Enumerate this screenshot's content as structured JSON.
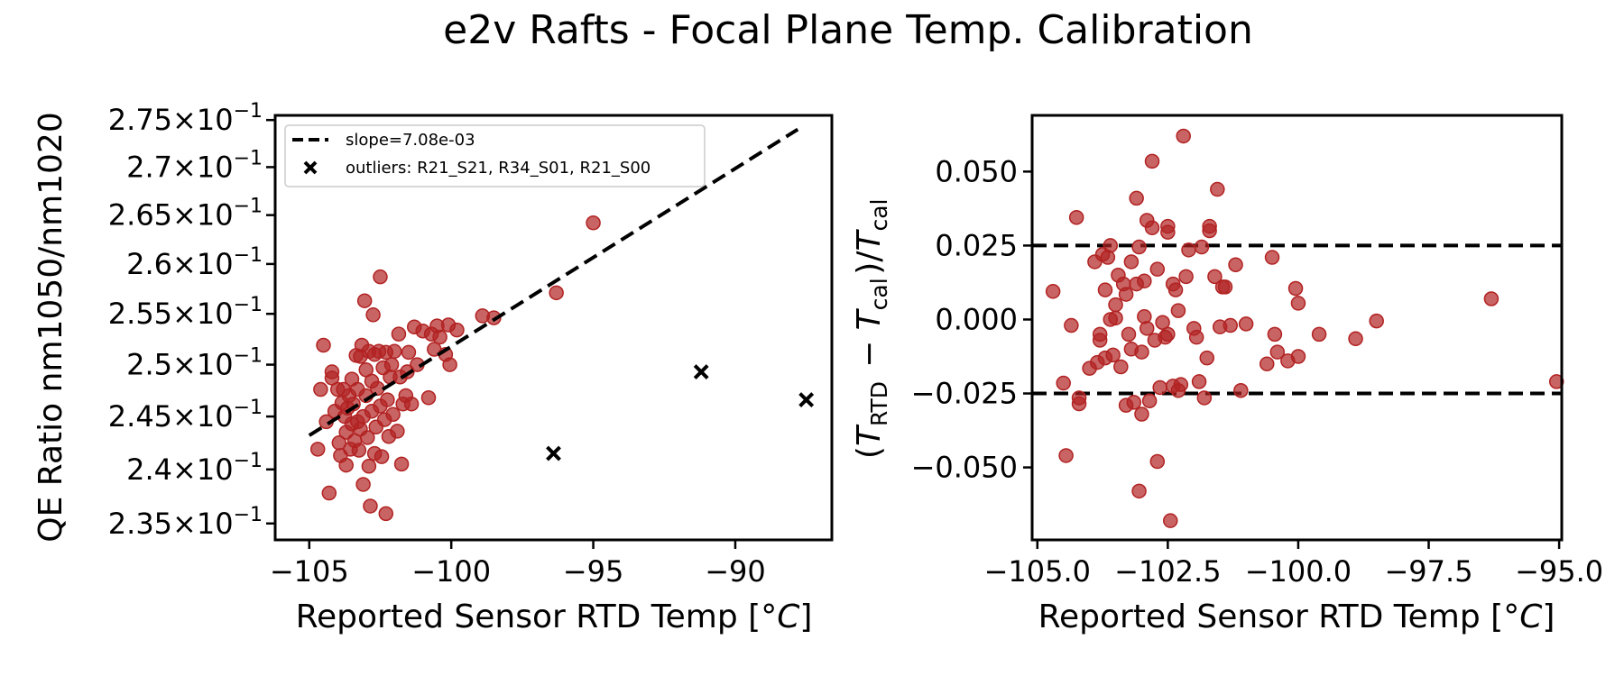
{
  "title": "e2v Rafts - Focal Plane Temp. Calibration",
  "colors": {
    "point": "#b22222",
    "line": "#000000"
  },
  "chart_data": [
    {
      "type": "scatter",
      "xlabel": "Reported Sensor RTD Temp [°C]",
      "ylabel": "QE Ratio nm1050/nm1020",
      "xlim": [
        -106.2,
        -86.6
      ],
      "ylim": [
        0.2335,
        0.2755
      ],
      "yscale": "log",
      "legend_position": "upper-left",
      "xticks": [
        {
          "value": -105,
          "label": "−105"
        },
        {
          "value": -100,
          "label": "−100"
        },
        {
          "value": -95,
          "label": "−95"
        },
        {
          "value": -90,
          "label": "−90"
        }
      ],
      "yticks": [
        {
          "value": 0.235,
          "base": "2.35",
          "mult": "×",
          "pow": "10",
          "exp": "−1"
        },
        {
          "value": 0.24,
          "base": "2.4",
          "mult": "×",
          "pow": "10",
          "exp": "−1"
        },
        {
          "value": 0.245,
          "base": "2.45",
          "mult": "×",
          "pow": "10",
          "exp": "−1"
        },
        {
          "value": 0.25,
          "base": "2.5",
          "mult": "×",
          "pow": "10",
          "exp": "−1"
        },
        {
          "value": 0.255,
          "base": "2.55",
          "mult": "×",
          "pow": "10",
          "exp": "−1"
        },
        {
          "value": 0.26,
          "base": "2.6",
          "mult": "×",
          "pow": "10",
          "exp": "−1"
        },
        {
          "value": 0.265,
          "base": "2.65",
          "mult": "×",
          "pow": "10",
          "exp": "−1"
        },
        {
          "value": 0.27,
          "base": "2.7",
          "mult": "×",
          "pow": "10",
          "exp": "−1"
        },
        {
          "value": 0.275,
          "base": "2.75",
          "mult": "×",
          "pow": "10",
          "exp": "−1"
        }
      ],
      "fit_line": {
        "label": "slope=7.08e-03",
        "x": [
          -105.0,
          -87.8
        ],
        "y": [
          0.2432,
          0.274
        ]
      },
      "outliers": {
        "label": "outliers: R21_S21, R34_S01, R21_S00",
        "points": [
          [
            -96.4,
            0.2415
          ],
          [
            -91.2,
            0.2493
          ],
          [
            -87.5,
            0.2466
          ]
        ]
      },
      "points": [
        [
          -104.7,
          0.2419
        ],
        [
          -104.6,
          0.2476
        ],
        [
          -104.5,
          0.2519
        ],
        [
          -104.4,
          0.2445
        ],
        [
          -104.3,
          0.2378
        ],
        [
          -104.2,
          0.2487
        ],
        [
          -104.2,
          0.2493
        ],
        [
          -104.1,
          0.2455
        ],
        [
          -104.0,
          0.2476
        ],
        [
          -103.95,
          0.2425
        ],
        [
          -103.9,
          0.2413
        ],
        [
          -103.85,
          0.2463
        ],
        [
          -103.8,
          0.2476
        ],
        [
          -103.75,
          0.245
        ],
        [
          -103.7,
          0.2404
        ],
        [
          -103.7,
          0.2435
        ],
        [
          -103.65,
          0.2458
        ],
        [
          -103.6,
          0.247
        ],
        [
          -103.55,
          0.2419
        ],
        [
          -103.5,
          0.2443
        ],
        [
          -103.5,
          0.2486
        ],
        [
          -103.45,
          0.2462
        ],
        [
          -103.4,
          0.2427
        ],
        [
          -103.35,
          0.2509
        ],
        [
          -103.3,
          0.2445
        ],
        [
          -103.3,
          0.2476
        ],
        [
          -103.25,
          0.2418
        ],
        [
          -103.2,
          0.2438
        ],
        [
          -103.2,
          0.2508
        ],
        [
          -103.15,
          0.2519
        ],
        [
          -103.1,
          0.2386
        ],
        [
          -103.1,
          0.245
        ],
        [
          -103.05,
          0.2563
        ],
        [
          -103.0,
          0.247
        ],
        [
          -103.0,
          0.2495
        ],
        [
          -102.95,
          0.243
        ],
        [
          -102.9,
          0.2403
        ],
        [
          -102.9,
          0.2513
        ],
        [
          -102.85,
          0.2366
        ],
        [
          -102.8,
          0.2455
        ],
        [
          -102.8,
          0.2484
        ],
        [
          -102.75,
          0.2549
        ],
        [
          -102.7,
          0.2415
        ],
        [
          -102.7,
          0.251
        ],
        [
          -102.65,
          0.244
        ],
        [
          -102.6,
          0.2477
        ],
        [
          -102.55,
          0.2513
        ],
        [
          -102.5,
          0.2587
        ],
        [
          -102.5,
          0.246
        ],
        [
          -102.45,
          0.2412
        ],
        [
          -102.4,
          0.2497
        ],
        [
          -102.35,
          0.2447
        ],
        [
          -102.3,
          0.2359
        ],
        [
          -102.3,
          0.2512
        ],
        [
          -102.25,
          0.2466
        ],
        [
          -102.2,
          0.2431
        ],
        [
          -102.15,
          0.2488
        ],
        [
          -102.1,
          0.25
        ],
        [
          -102.05,
          0.2452
        ],
        [
          -102.0,
          0.2513
        ],
        [
          -101.9,
          0.2436
        ],
        [
          -101.85,
          0.253
        ],
        [
          -101.8,
          0.2488
        ],
        [
          -101.75,
          0.2405
        ],
        [
          -101.7,
          0.2462
        ],
        [
          -101.6,
          0.247
        ],
        [
          -101.55,
          0.2493
        ],
        [
          -101.5,
          0.2512
        ],
        [
          -101.4,
          0.2462
        ],
        [
          -101.3,
          0.2537
        ],
        [
          -101.2,
          0.25
        ],
        [
          -101.0,
          0.2533
        ],
        [
          -100.8,
          0.2468
        ],
        [
          -100.7,
          0.253
        ],
        [
          -100.6,
          0.2515
        ],
        [
          -100.5,
          0.2538
        ],
        [
          -100.4,
          0.2527
        ],
        [
          -100.2,
          0.251
        ],
        [
          -100.1,
          0.2539
        ],
        [
          -100.05,
          0.25
        ],
        [
          -99.8,
          0.2534
        ],
        [
          -98.9,
          0.2548
        ],
        [
          -98.5,
          0.2546
        ],
        [
          -96.3,
          0.2571
        ],
        [
          -95.0,
          0.2642
        ]
      ]
    },
    {
      "type": "scatter",
      "xlabel": "Reported Sensor RTD Temp [°C]",
      "ylabel": "(T_RTD − T_cal)/T_cal",
      "xlim": [
        -105.1,
        -94.95
      ],
      "ylim": [
        -0.0745,
        0.069
      ],
      "xticks": [
        {
          "value": -105.0,
          "label": "−105.0"
        },
        {
          "value": -102.5,
          "label": "−102.5"
        },
        {
          "value": -100.0,
          "label": "−100.0"
        },
        {
          "value": -97.5,
          "label": "−97.5"
        },
        {
          "value": -95.0,
          "label": "−95.0"
        }
      ],
      "yticks": [
        {
          "value": 0.05,
          "label": "0.050"
        },
        {
          "value": 0.025,
          "label": "0.025"
        },
        {
          "value": 0.0,
          "label": "0.000"
        },
        {
          "value": -0.025,
          "label": "−0.025"
        },
        {
          "value": -0.05,
          "label": "−0.050"
        }
      ],
      "hlines": [
        0.025,
        -0.025
      ],
      "points": [
        [
          -104.7,
          0.0095
        ],
        [
          -104.5,
          -0.0215
        ],
        [
          -104.45,
          -0.046
        ],
        [
          -104.35,
          -0.002
        ],
        [
          -104.25,
          0.0345
        ],
        [
          -104.2,
          -0.0265
        ],
        [
          -104.2,
          -0.0285
        ],
        [
          -104.0,
          -0.0165
        ],
        [
          -103.9,
          0.0195
        ],
        [
          -103.85,
          -0.0145
        ],
        [
          -103.8,
          -0.005
        ],
        [
          -103.8,
          -0.007
        ],
        [
          -103.75,
          0.022
        ],
        [
          -103.7,
          -0.013
        ],
        [
          -103.7,
          0.01
        ],
        [
          -103.65,
          0.021
        ],
        [
          -103.6,
          0.0
        ],
        [
          -103.6,
          0.025
        ],
        [
          -103.55,
          -0.012
        ],
        [
          -103.5,
          0.005
        ],
        [
          -103.5,
          0.0005
        ],
        [
          -103.45,
          0.015
        ],
        [
          -103.4,
          -0.016
        ],
        [
          -103.35,
          0.012
        ],
        [
          -103.3,
          -0.029
        ],
        [
          -103.3,
          0.0085
        ],
        [
          -103.25,
          -0.005
        ],
        [
          -103.2,
          0.0195
        ],
        [
          -103.2,
          -0.01
        ],
        [
          -103.15,
          -0.028
        ],
        [
          -103.1,
          0.041
        ],
        [
          -103.1,
          0.012
        ],
        [
          -103.05,
          -0.058
        ],
        [
          -103.05,
          0.0245
        ],
        [
          -103.0,
          -0.032
        ],
        [
          -103.0,
          -0.011
        ],
        [
          -102.95,
          0.013
        ],
        [
          -102.95,
          0.001
        ],
        [
          -102.9,
          0.0335
        ],
        [
          -102.9,
          -0.003
        ],
        [
          -102.85,
          -0.0275
        ],
        [
          -102.8,
          0.031
        ],
        [
          -102.8,
          0.0535
        ],
        [
          -102.75,
          -0.007
        ],
        [
          -102.7,
          -0.048
        ],
        [
          -102.7,
          0.017
        ],
        [
          -102.65,
          -0.023
        ],
        [
          -102.6,
          -0.001
        ],
        [
          -102.55,
          -0.006
        ],
        [
          -102.5,
          0.0295
        ],
        [
          -102.5,
          0.0315
        ],
        [
          -102.5,
          -0.005
        ],
        [
          -102.45,
          -0.068
        ],
        [
          -102.4,
          -0.0225
        ],
        [
          -102.4,
          0.012
        ],
        [
          -102.35,
          0.01
        ],
        [
          -102.3,
          -0.024
        ],
        [
          -102.3,
          0.003
        ],
        [
          -102.25,
          -0.022
        ],
        [
          -102.2,
          0.062
        ],
        [
          -102.15,
          0.0145
        ],
        [
          -102.1,
          0.0235
        ],
        [
          -102.0,
          -0.003
        ],
        [
          -101.95,
          -0.006
        ],
        [
          -101.9,
          -0.021
        ],
        [
          -101.85,
          0.0245
        ],
        [
          -101.8,
          -0.0265
        ],
        [
          -101.75,
          -0.013
        ],
        [
          -101.7,
          0.0315
        ],
        [
          -101.7,
          0.03
        ],
        [
          -101.6,
          0.0145
        ],
        [
          -101.55,
          0.044
        ],
        [
          -101.5,
          -0.0025
        ],
        [
          -101.45,
          0.011
        ],
        [
          -101.4,
          0.011
        ],
        [
          -101.3,
          -0.002
        ],
        [
          -101.2,
          0.0185
        ],
        [
          -101.1,
          -0.024
        ],
        [
          -101.0,
          -0.0015
        ],
        [
          -100.6,
          -0.015
        ],
        [
          -100.5,
          0.021
        ],
        [
          -100.45,
          -0.005
        ],
        [
          -100.4,
          -0.011
        ],
        [
          -100.2,
          -0.014
        ],
        [
          -100.05,
          0.0105
        ],
        [
          -100.0,
          0.0055
        ],
        [
          -100.0,
          -0.0125
        ],
        [
          -99.6,
          -0.005
        ],
        [
          -98.9,
          -0.0065
        ],
        [
          -98.5,
          -0.0005
        ],
        [
          -96.3,
          0.007
        ],
        [
          -95.05,
          -0.021
        ]
      ]
    }
  ]
}
